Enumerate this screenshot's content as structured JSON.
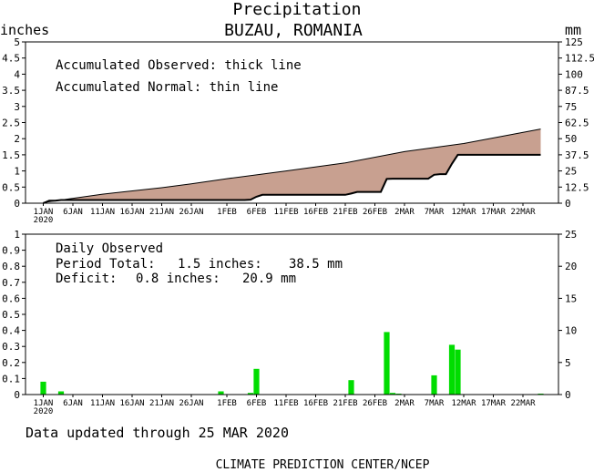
{
  "title": "Precipitation",
  "subtitle": "BUZAU, ROMANIA",
  "footer_updated": "Data updated through 25 MAR 2020",
  "footer_credit": "CLIMATE PREDICTION CENTER/NCEP",
  "colors": {
    "fill_between": "#c8a090",
    "bars": "#00dd00",
    "axes": "#000000"
  },
  "chart_data": [
    {
      "type": "area",
      "left_unit": "inches",
      "right_unit": "mm",
      "ylim": [
        0,
        5
      ],
      "ylim_right": [
        0,
        125
      ],
      "yticks_left": [
        "0",
        "0.5",
        "1",
        "1.5",
        "2",
        "2.5",
        "3",
        "3.5",
        "4",
        "4.5",
        "5"
      ],
      "yticks_right": [
        "0",
        "12.5",
        "25",
        "37.5",
        "50",
        "62.5",
        "75",
        "87.5",
        "100",
        "112.5",
        "125"
      ],
      "xlim": [
        "2019-12-29",
        "2020-03-28"
      ],
      "x_ticks": [
        {
          "date": "2020-01-01",
          "label": "1JAN",
          "label2": "2020"
        },
        {
          "date": "2020-01-06",
          "label": "6JAN"
        },
        {
          "date": "2020-01-11",
          "label": "11JAN"
        },
        {
          "date": "2020-01-16",
          "label": "16JAN"
        },
        {
          "date": "2020-01-21",
          "label": "21JAN"
        },
        {
          "date": "2020-01-26",
          "label": "26JAN"
        },
        {
          "date": "2020-02-01",
          "label": "1FEB"
        },
        {
          "date": "2020-02-06",
          "label": "6FEB"
        },
        {
          "date": "2020-02-11",
          "label": "11FEB"
        },
        {
          "date": "2020-02-16",
          "label": "16FEB"
        },
        {
          "date": "2020-02-21",
          "label": "21FEB"
        },
        {
          "date": "2020-02-26",
          "label": "26FEB"
        },
        {
          "date": "2020-03-02",
          "label": "2MAR"
        },
        {
          "date": "2020-03-07",
          "label": "7MAR"
        },
        {
          "date": "2020-03-12",
          "label": "12MAR"
        },
        {
          "date": "2020-03-17",
          "label": "17MAR"
        },
        {
          "date": "2020-03-22",
          "label": "22MAR"
        }
      ],
      "annotations": [
        "Accumulated Observed: thick line",
        "Accumulated Normal: thin line"
      ],
      "series": [
        {
          "name": "Accumulated Observed",
          "points": [
            [
              "2020-01-01",
              0.0
            ],
            [
              "2020-01-02",
              0.08
            ],
            [
              "2020-01-03",
              0.08
            ],
            [
              "2020-01-04",
              0.1
            ],
            [
              "2020-02-04",
              0.1
            ],
            [
              "2020-02-05",
              0.11
            ],
            [
              "2020-02-06",
              0.2
            ],
            [
              "2020-02-07",
              0.26
            ],
            [
              "2020-02-21",
              0.26
            ],
            [
              "2020-02-22",
              0.3
            ],
            [
              "2020-02-23",
              0.35
            ],
            [
              "2020-02-27",
              0.35
            ],
            [
              "2020-02-28",
              0.75
            ],
            [
              "2020-02-29",
              0.76
            ],
            [
              "2020-03-06",
              0.76
            ],
            [
              "2020-03-07",
              0.88
            ],
            [
              "2020-03-08",
              0.9
            ],
            [
              "2020-03-09",
              0.9
            ],
            [
              "2020-03-10",
              1.22
            ],
            [
              "2020-03-11",
              1.5
            ],
            [
              "2020-03-25",
              1.5
            ]
          ]
        },
        {
          "name": "Accumulated Normal",
          "points": [
            [
              "2020-01-01",
              0.02
            ],
            [
              "2020-01-11",
              0.28
            ],
            [
              "2020-01-21",
              0.48
            ],
            [
              "2020-01-26",
              0.6
            ],
            [
              "2020-02-01",
              0.76
            ],
            [
              "2020-02-11",
              1.0
            ],
            [
              "2020-02-21",
              1.25
            ],
            [
              "2020-03-02",
              1.6
            ],
            [
              "2020-03-12",
              1.85
            ],
            [
              "2020-03-25",
              2.3
            ]
          ]
        }
      ]
    },
    {
      "type": "bar",
      "left_unit": "",
      "ylim": [
        0,
        1
      ],
      "ylim_right": [
        0,
        25
      ],
      "yticks_left": [
        "0",
        "0.1",
        "0.2",
        "0.3",
        "0.4",
        "0.5",
        "0.6",
        "0.7",
        "0.8",
        "0.9",
        "1"
      ],
      "yticks_right": [
        "0",
        "5",
        "10",
        "15",
        "20",
        "25"
      ],
      "stats": {
        "heading": "Daily Observed",
        "period_label": "Period Total:",
        "period_inches": "1.5 inches:",
        "period_mm": "38.5 mm",
        "deficit_label": "Deficit:",
        "deficit_inches": "0.8 inches:",
        "deficit_mm": "20.9 mm"
      },
      "bars": [
        {
          "date": "2020-01-01",
          "value": 0.08
        },
        {
          "date": "2020-01-04",
          "value": 0.02
        },
        {
          "date": "2020-01-31",
          "value": 0.02
        },
        {
          "date": "2020-02-05",
          "value": 0.01
        },
        {
          "date": "2020-02-06",
          "value": 0.16
        },
        {
          "date": "2020-02-22",
          "value": 0.09
        },
        {
          "date": "2020-02-28",
          "value": 0.39
        },
        {
          "date": "2020-02-29",
          "value": 0.01
        },
        {
          "date": "2020-03-01",
          "value": 0.005
        },
        {
          "date": "2020-03-07",
          "value": 0.12
        },
        {
          "date": "2020-03-10",
          "value": 0.31
        },
        {
          "date": "2020-03-11",
          "value": 0.28
        },
        {
          "date": "2020-03-25",
          "value": 0.005
        }
      ]
    }
  ]
}
